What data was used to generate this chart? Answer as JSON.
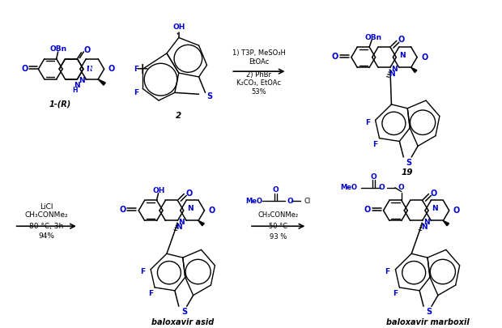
{
  "bg_color": "#ffffff",
  "text_color": "#000000",
  "blue_color": "#0000cd",
  "figsize": [
    6.2,
    4.05
  ],
  "dpi": 100,
  "cond1": [
    "1) T3P, MeSO₃H",
    "EtOAc",
    "2) PhBr",
    "K₂CO₃, EtOAc",
    "53%"
  ],
  "cond2": [
    "LiCl",
    "CH₃CONMe₂",
    "80 °C, 3h",
    "94%"
  ],
  "cond3": [
    "CH₃CONMe₂",
    "50 °C",
    "93 %"
  ],
  "label1": "1-(R)",
  "label2": "2",
  "label3": "19",
  "label4": "baloxavir asid",
  "label5": "baloxavir marboxil"
}
